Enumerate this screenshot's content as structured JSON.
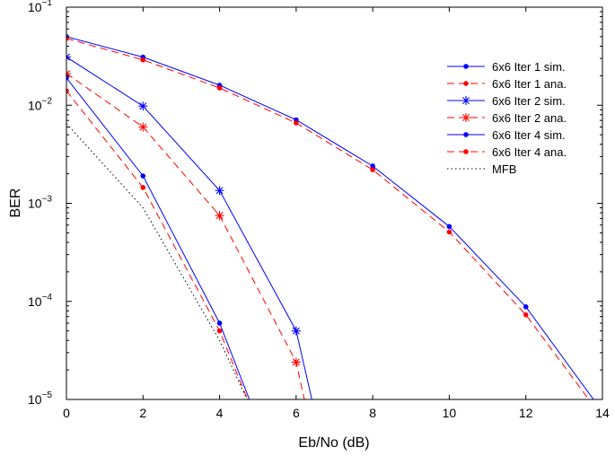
{
  "chart_data": {
    "type": "line",
    "xlabel": "Eb/No (dB)",
    "ylabel": "BER",
    "xlim": [
      0,
      14
    ],
    "ylim": [
      1e-05,
      0.1
    ],
    "yscale": "log",
    "grid": false,
    "legend_position": "top-right",
    "x_ticks": [
      "0",
      "2",
      "4",
      "6",
      "8",
      "10",
      "12",
      "14"
    ],
    "y_ticks": [
      {
        "base": "10",
        "exp": "−5",
        "value": 1e-05
      },
      {
        "base": "10",
        "exp": "−4",
        "value": 0.0001
      },
      {
        "base": "10",
        "exp": "−3",
        "value": 0.001
      },
      {
        "base": "10",
        "exp": "−2",
        "value": 0.01
      },
      {
        "base": "10",
        "exp": "−1",
        "value": 0.1
      }
    ],
    "series": [
      {
        "name": "6x6 Iter 1 sim.",
        "color": "#0000ff",
        "line": "solid",
        "marker": "dot",
        "x": [
          0,
          2,
          4,
          6,
          8,
          10,
          12,
          14
        ],
        "y": [
          0.05,
          0.031,
          0.016,
          0.0071,
          0.0024,
          0.00058,
          8.8e-05,
          7.5e-06
        ]
      },
      {
        "name": "6x6 Iter 1 ana.",
        "color": "#ff0000",
        "line": "dashed",
        "marker": "dot",
        "x": [
          0,
          2,
          4,
          6,
          8,
          10,
          12,
          14
        ],
        "y": [
          0.048,
          0.029,
          0.015,
          0.0066,
          0.0022,
          0.00051,
          7.3e-05,
          6.5e-06
        ]
      },
      {
        "name": "6x6 Iter 2 sim.",
        "color": "#0000ff",
        "line": "solid",
        "marker": "star",
        "x": [
          0,
          2,
          4,
          6,
          6.5
        ],
        "y": [
          0.031,
          0.0098,
          0.00135,
          5e-05,
          7e-06
        ]
      },
      {
        "name": "6x6 Iter 2 ana.",
        "color": "#ff0000",
        "line": "dashed",
        "marker": "star",
        "x": [
          0,
          2,
          4,
          6,
          6.3
        ],
        "y": [
          0.021,
          0.006,
          0.00075,
          2.4e-05,
          7e-06
        ]
      },
      {
        "name": "6x6 Iter 4 sim.",
        "color": "#0000ff",
        "line": "solid",
        "marker": "dot",
        "x": [
          0,
          2,
          4,
          5
        ],
        "y": [
          0.019,
          0.0019,
          6e-05,
          6e-06
        ]
      },
      {
        "name": "6x6 Iter 4 ana.",
        "color": "#ff0000",
        "line": "dashed",
        "marker": "dot",
        "x": [
          0,
          2,
          4,
          5
        ],
        "y": [
          0.014,
          0.00145,
          5e-05,
          5.5e-06
        ]
      },
      {
        "name": "MFB",
        "color": "#000000",
        "line": "dotted",
        "marker": "none",
        "x": [
          0,
          2,
          4,
          4.9
        ],
        "y": [
          0.0065,
          0.0009,
          4e-05,
          7e-06
        ]
      }
    ]
  }
}
